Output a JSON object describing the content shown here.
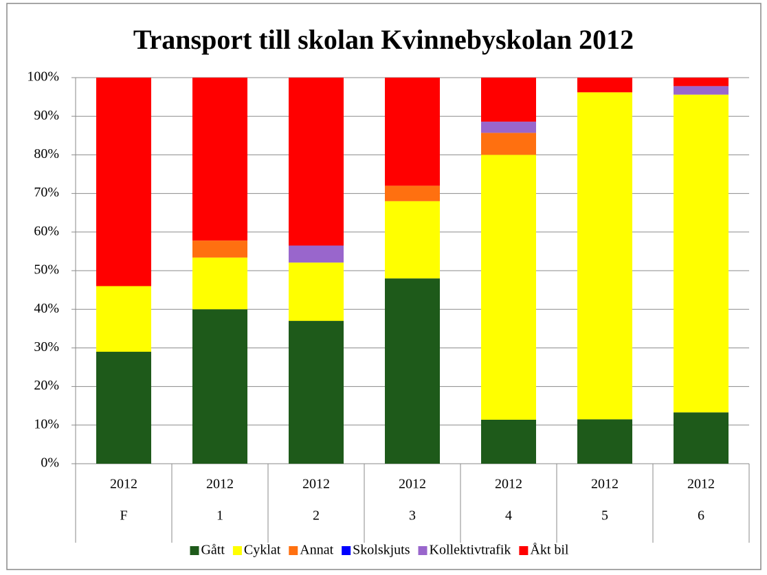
{
  "chart_data": {
    "type": "stacked_bar_100",
    "title": "Transport till skolan Kvinnebyskolan 2012",
    "categories": [
      "F",
      "1",
      "2",
      "3",
      "4",
      "5",
      "6"
    ],
    "subcategories": [
      "2012",
      "2012",
      "2012",
      "2012",
      "2012",
      "2012",
      "2012"
    ],
    "series": [
      {
        "name": "Gått",
        "color": "#1e5a1a",
        "values": [
          29,
          40,
          37,
          48,
          11.4,
          11.5,
          13.3
        ]
      },
      {
        "name": "Cyklat",
        "color": "#ffff00",
        "values": [
          17,
          13.4,
          15.1,
          20,
          68.6,
          84.7,
          82.3
        ]
      },
      {
        "name": "Annat",
        "color": "#ff7010",
        "values": [
          0,
          4.4,
          0,
          4,
          5.7,
          0,
          0
        ]
      },
      {
        "name": "Skolskjuts",
        "color": "#0000ff",
        "values": [
          0,
          0,
          0,
          0,
          0,
          0,
          0
        ]
      },
      {
        "name": "Kollektivtrafik",
        "color": "#9966cc",
        "values": [
          0,
          0,
          4.4,
          0,
          2.9,
          0,
          2.2
        ]
      },
      {
        "name": "Åkt bil",
        "color": "#ff0000",
        "values": [
          54,
          42.2,
          43.5,
          28,
          11.4,
          3.8,
          2.2
        ]
      }
    ],
    "ylim": [
      0,
      100
    ],
    "yticks": [
      {
        "value": 0,
        "label": "0%"
      },
      {
        "value": 10,
        "label": "10%"
      },
      {
        "value": 20,
        "label": "20%"
      },
      {
        "value": 30,
        "label": "30%"
      },
      {
        "value": 40,
        "label": "40%"
      },
      {
        "value": 50,
        "label": "50%"
      },
      {
        "value": 60,
        "label": "60%"
      },
      {
        "value": 70,
        "label": "70%"
      },
      {
        "value": 80,
        "label": "80%"
      },
      {
        "value": 90,
        "label": "90%"
      },
      {
        "value": 100,
        "label": "100%"
      }
    ],
    "grid": true,
    "legend": "bottom"
  }
}
